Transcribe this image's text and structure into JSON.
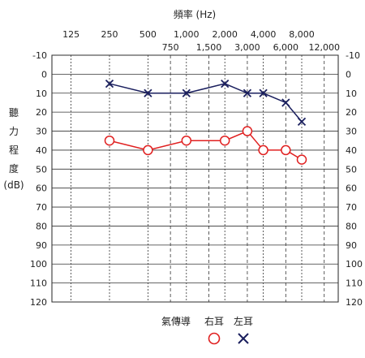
{
  "chart_data": {
    "type": "line",
    "title": "頻率 (Hz)",
    "ylabel_chars": [
      "聽",
      "力",
      "程",
      "度",
      "(dB)"
    ],
    "x_top_ticks": [
      {
        "label": "125",
        "x": 125
      },
      {
        "label": "250",
        "x": 250
      },
      {
        "label": "500",
        "x": 500
      },
      {
        "label": "1,000",
        "x": 1000
      },
      {
        "label": "2,000",
        "x": 2000
      },
      {
        "label": "4,000",
        "x": 4000
      },
      {
        "label": "8,000",
        "x": 8000
      }
    ],
    "x_mid_ticks": [
      {
        "label": "750",
        "x": 750
      },
      {
        "label": "1,500",
        "x": 1500
      },
      {
        "label": "3,000",
        "x": 3000
      },
      {
        "label": "6,000",
        "x": 6000
      },
      {
        "label": "12,000",
        "x": 12000
      }
    ],
    "ylim": [
      -10,
      120
    ],
    "y_ticks": [
      -10,
      0,
      10,
      20,
      30,
      40,
      50,
      60,
      70,
      80,
      90,
      100,
      110,
      120
    ],
    "y_reversed": true,
    "x_scale": "log2",
    "grid": true,
    "legend": {
      "label": "氣傳導",
      "items": [
        {
          "label": "右耳",
          "marker": "circle",
          "color": "#e02020"
        },
        {
          "label": "左耳",
          "marker": "x",
          "color": "#1a1f5e"
        }
      ],
      "placement": "bottom"
    },
    "series": [
      {
        "ear": "right",
        "marker": "circle",
        "color": "#e02020",
        "x": [
          250,
          500,
          1000,
          2000,
          3000,
          4000,
          6000,
          8000
        ],
        "y": [
          35,
          40,
          35,
          35,
          30,
          40,
          40,
          45
        ]
      },
      {
        "ear": "left",
        "marker": "x",
        "color": "#1a1f5e",
        "x": [
          250,
          500,
          1000,
          2000,
          3000,
          4000,
          6000,
          8000
        ],
        "y": [
          5,
          10,
          10,
          5,
          10,
          10,
          15,
          25
        ]
      }
    ]
  }
}
